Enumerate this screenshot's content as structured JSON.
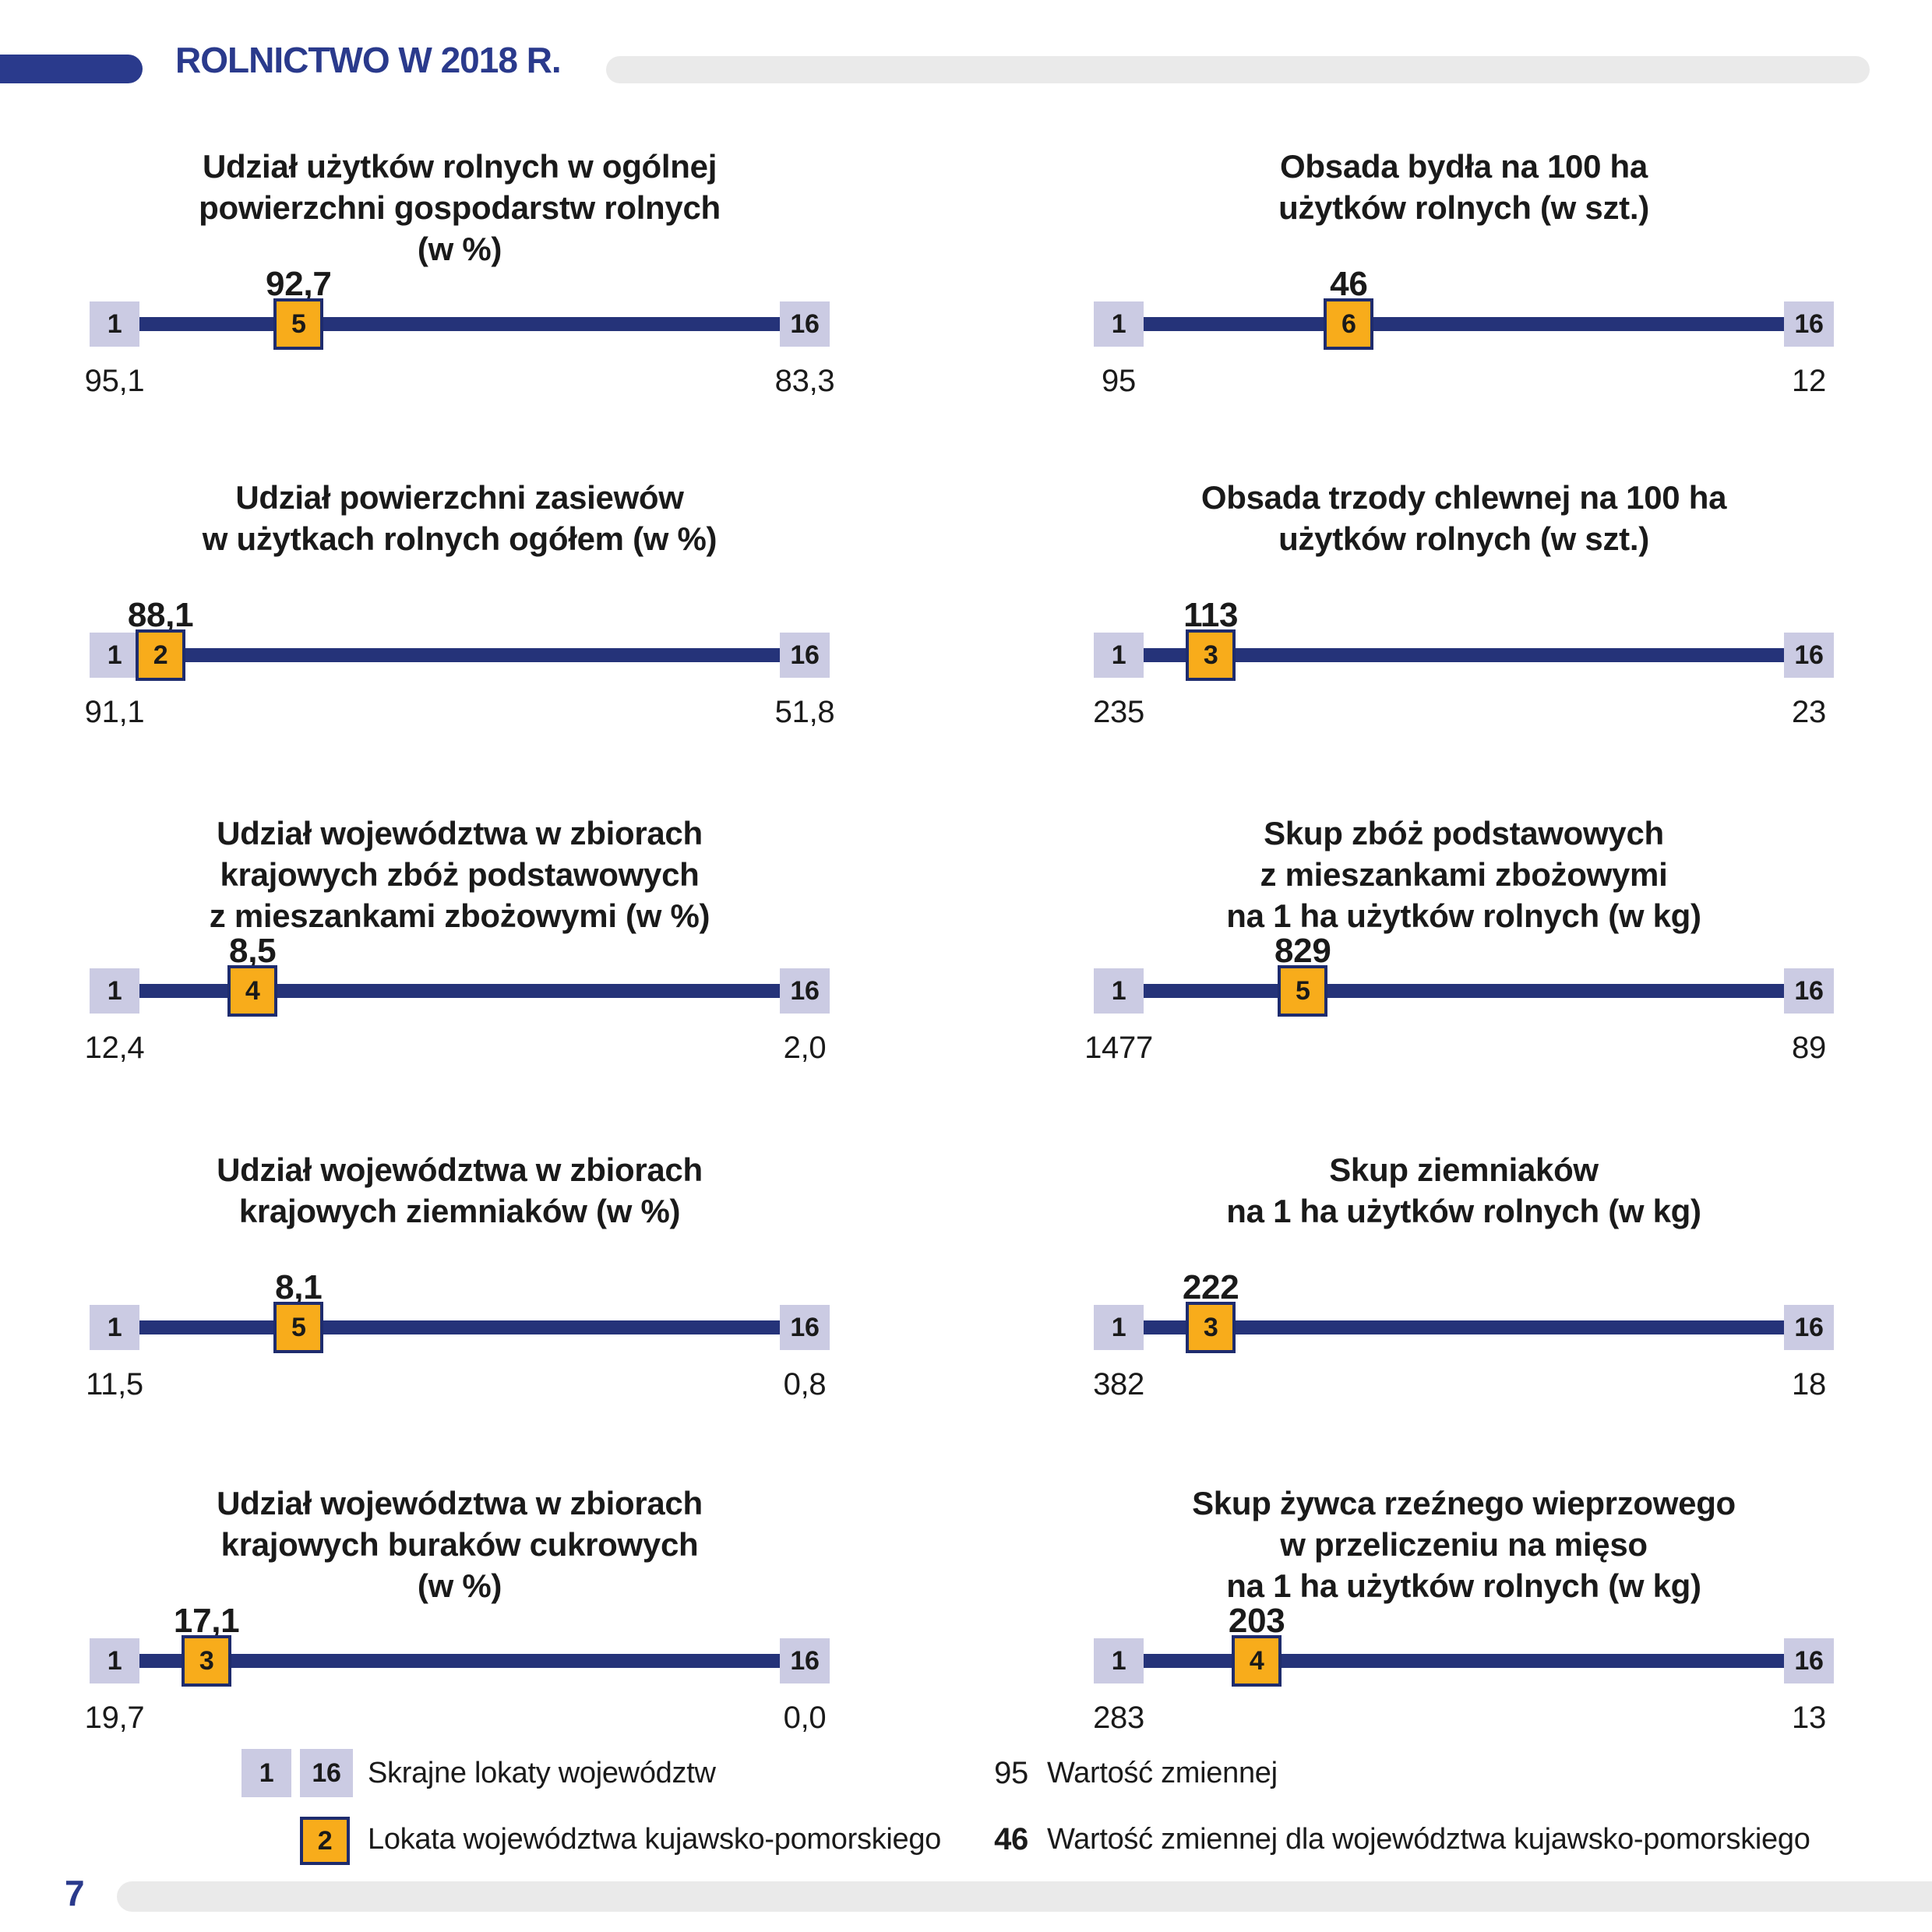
{
  "header": {
    "title": "ROLNICTWO W 2018 R."
  },
  "colors": {
    "navy_track": "#253379",
    "navy_border": "#1e2c6e",
    "navy_header": "#2a3a8c",
    "orange_marker": "#f8ac1b",
    "lavender_rank_box": "#cbcbe3",
    "gray_rule": "#eaeaea",
    "text": "#1a1a1a"
  },
  "rank_scale": {
    "best": 1,
    "worst": 16,
    "note": "lokaty województw 1-16"
  },
  "chart_data": [
    {
      "type": "rank-slider",
      "position": {
        "row": 1,
        "col": "left"
      },
      "title_lines": [
        "Udział  użytków rolnych w ogólnej",
        "powierzchni gospodarstw rolnych",
        "(w %)"
      ],
      "title": "Udział użytków rolnych w ogólnej powierzchni gospodarstw rolnych (w %)",
      "kp_value": "92,7",
      "kp_rank": 5,
      "rank_first": "1",
      "rank_last": "16",
      "value_rank1": "95,1",
      "value_rank16": "83,3",
      "numeric": {
        "kp_value": 92.7,
        "rank1": 95.1,
        "rank16": 83.3
      }
    },
    {
      "type": "rank-slider",
      "position": {
        "row": 1,
        "col": "right"
      },
      "title_lines": [
        "Obsada bydła na 100 ha",
        "użytków rolnych (w szt.)"
      ],
      "title": "Obsada bydła na 100 ha użytków rolnych (w szt.)",
      "kp_value": "46",
      "kp_rank": 6,
      "rank_first": "1",
      "rank_last": "16",
      "value_rank1": "95",
      "value_rank16": "12",
      "numeric": {
        "kp_value": 46,
        "rank1": 95,
        "rank16": 12
      }
    },
    {
      "type": "rank-slider",
      "position": {
        "row": 2,
        "col": "left"
      },
      "title_lines": [
        "Udział powierzchni zasiewów",
        "w użytkach rolnych ogółem (w %)"
      ],
      "title": "Udział powierzchni zasiewów w użytkach rolnych ogółem (w %)",
      "kp_value": "88,1",
      "kp_rank": 2,
      "rank_first": "1",
      "rank_last": "16",
      "value_rank1": "91,1",
      "value_rank16": "51,8",
      "numeric": {
        "kp_value": 88.1,
        "rank1": 91.1,
        "rank16": 51.8
      }
    },
    {
      "type": "rank-slider",
      "position": {
        "row": 2,
        "col": "right"
      },
      "title_lines": [
        "Obsada trzody chlewnej na 100 ha",
        "użytków rolnych (w szt.)"
      ],
      "title": "Obsada trzody chlewnej na 100 ha użytków rolnych (w szt.)",
      "kp_value": "113",
      "kp_rank": 3,
      "rank_first": "1",
      "rank_last": "16",
      "value_rank1": "235",
      "value_rank16": "23",
      "numeric": {
        "kp_value": 113,
        "rank1": 235,
        "rank16": 23
      }
    },
    {
      "type": "rank-slider",
      "position": {
        "row": 3,
        "col": "left"
      },
      "title_lines": [
        "Udział województwa w zbiorach",
        "krajowych zbóż podstawowych",
        "z mieszankami zbożowymi (w %)"
      ],
      "title": "Udział województwa w zbiorach krajowych zbóż podstawowych z mieszankami zbożowymi (w %)",
      "kp_value": "8,5",
      "kp_rank": 4,
      "rank_first": "1",
      "rank_last": "16",
      "value_rank1": "12,4",
      "value_rank16": "2,0",
      "numeric": {
        "kp_value": 8.5,
        "rank1": 12.4,
        "rank16": 2.0
      }
    },
    {
      "type": "rank-slider",
      "position": {
        "row": 3,
        "col": "right"
      },
      "title_lines": [
        "Skup zbóż podstawowych",
        "z mieszankami zbożowymi",
        "na 1 ha użytków rolnych (w kg)"
      ],
      "title": "Skup zbóż podstawowych z mieszankami zbożowymi na 1 ha użytków rolnych (w kg)",
      "kp_value": "829",
      "kp_rank": 5,
      "rank_first": "1",
      "rank_last": "16",
      "value_rank1": "1477",
      "value_rank16": "89",
      "numeric": {
        "kp_value": 829,
        "rank1": 1477,
        "rank16": 89
      }
    },
    {
      "type": "rank-slider",
      "position": {
        "row": 4,
        "col": "left"
      },
      "title_lines": [
        "Udział województwa w zbiorach",
        "krajowych ziemniaków (w %)"
      ],
      "title": "Udział województwa w zbiorach krajowych ziemniaków (w %)",
      "kp_value": "8,1",
      "kp_rank": 5,
      "rank_first": "1",
      "rank_last": "16",
      "value_rank1": "11,5",
      "value_rank16": "0,8",
      "numeric": {
        "kp_value": 8.1,
        "rank1": 11.5,
        "rank16": 0.8
      }
    },
    {
      "type": "rank-slider",
      "position": {
        "row": 4,
        "col": "right"
      },
      "title_lines": [
        "Skup ziemniaków",
        "na 1 ha użytków rolnych (w kg)"
      ],
      "title": "Skup ziemniaków na 1 ha użytków rolnych (w kg)",
      "kp_value": "222",
      "kp_rank": 3,
      "rank_first": "1",
      "rank_last": "16",
      "value_rank1": "382",
      "value_rank16": "18",
      "numeric": {
        "kp_value": 222,
        "rank1": 382,
        "rank16": 18
      }
    },
    {
      "type": "rank-slider",
      "position": {
        "row": 5,
        "col": "left"
      },
      "title_lines": [
        "Udział województwa w zbiorach",
        "krajowych buraków cukrowych",
        "(w %)"
      ],
      "title": "Udział województwa w zbiorach krajowych buraków cukrowych (w %)",
      "kp_value": "17,1",
      "kp_rank": 3,
      "rank_first": "1",
      "rank_last": "16",
      "value_rank1": "19,7",
      "value_rank16": "0,0",
      "numeric": {
        "kp_value": 17.1,
        "rank1": 19.7,
        "rank16": 0.0
      }
    },
    {
      "type": "rank-slider",
      "position": {
        "row": 5,
        "col": "right"
      },
      "title_lines": [
        "Skup żywca rzeźnego wieprzowego",
        "w przeliczeniu na mięso",
        "na 1 ha użytków rolnych (w kg)"
      ],
      "title": "Skup żywca rzeźnego wieprzowego w przeliczeniu na mięso na 1 ha użytków rolnych (w kg)",
      "kp_value": "203",
      "kp_rank": 4,
      "rank_first": "1",
      "rank_last": "16",
      "value_rank1": "283",
      "value_rank16": "13",
      "numeric": {
        "kp_value": 203,
        "rank1": 283,
        "rank16": 13
      }
    }
  ],
  "legend": {
    "rank_first": "1",
    "rank_last": "16",
    "extremes_label": "Skrajne lokaty województw",
    "kp_rank_example": "2",
    "kp_rank_label": "Lokata województwa kujawsko-pomorskiego",
    "value_example": "95",
    "value_label": "Wartość zmiennej",
    "kp_value_example": "46",
    "kp_value_label": "Wartość zmiennej dla województwa kujawsko-pomorskiego"
  },
  "footer": {
    "page_number": "7"
  }
}
